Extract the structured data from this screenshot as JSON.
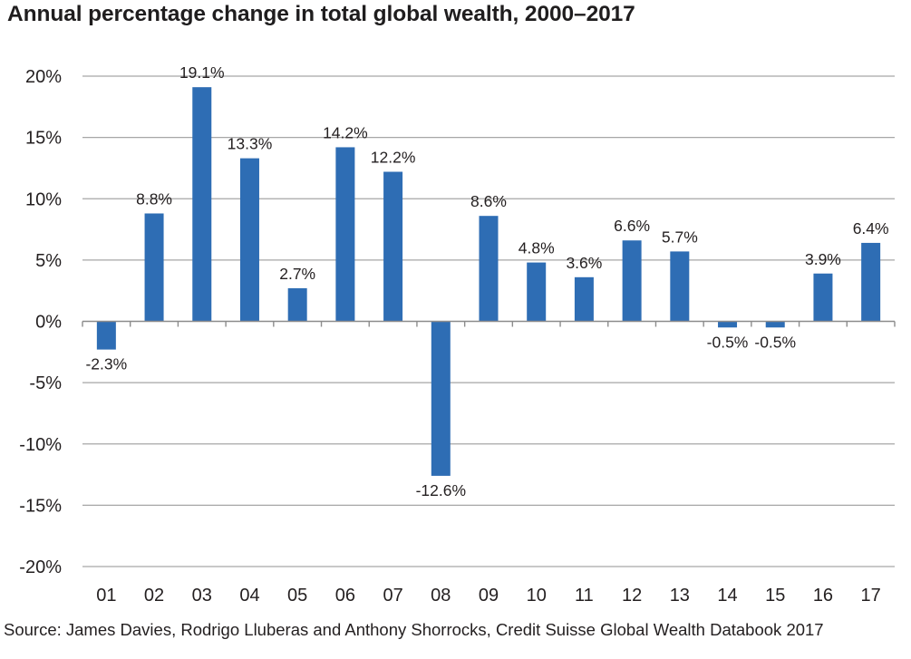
{
  "chart_data": {
    "type": "bar",
    "title": "Annual percentage change in total global wealth, 2000–2017",
    "xlabel": "",
    "ylabel": "",
    "categories": [
      "01",
      "02",
      "03",
      "04",
      "05",
      "06",
      "07",
      "08",
      "09",
      "10",
      "11",
      "12",
      "13",
      "14",
      "15",
      "16",
      "17"
    ],
    "values": [
      -2.3,
      8.8,
      19.1,
      13.3,
      2.7,
      14.2,
      12.2,
      -12.6,
      8.6,
      4.8,
      3.6,
      6.6,
      5.7,
      -0.5,
      -0.5,
      3.9,
      6.4
    ],
    "data_labels": [
      "-2.3%",
      "8.8%",
      "19.1%",
      "13.3%",
      "2.7%",
      "14.2%",
      "12.2%",
      "-12.6%",
      "8.6%",
      "4.8%",
      "3.6%",
      "6.6%",
      "5.7%",
      "-0.5%",
      "-0.5%",
      "3.9%",
      "6.4%"
    ],
    "ylim": [
      -20,
      20
    ],
    "yticks": [
      20,
      15,
      10,
      5,
      0,
      -5,
      -10,
      -15,
      -20
    ],
    "ytick_labels": [
      "20%",
      "15%",
      "10%",
      "5%",
      "0%",
      "-5%",
      "-10%",
      "-15%",
      "-20%"
    ],
    "grid": true,
    "legend": null,
    "bar_color": "#2e6db4",
    "grid_color": "#a6a6a6",
    "source": "Source: James Davies, Rodrigo Lluberas and Anthony Shorrocks, Credit Suisse Global Wealth Databook 2017"
  }
}
